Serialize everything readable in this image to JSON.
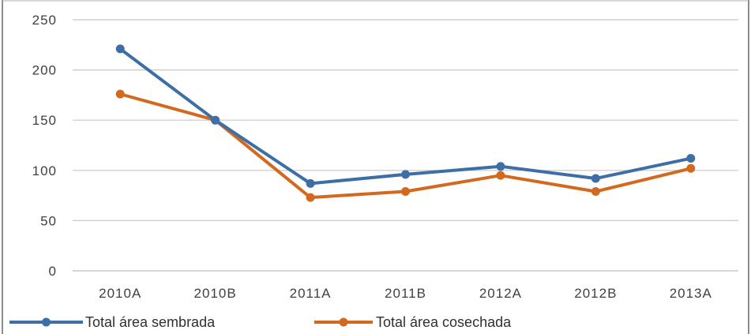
{
  "chart_data": {
    "type": "line",
    "categories": [
      "2010A",
      "2010B",
      "2011A",
      "2011B",
      "2012A",
      "2012B",
      "2013A"
    ],
    "series": [
      {
        "name": "Total área sembrada",
        "color": "#3d6fa6",
        "values": [
          221,
          150,
          87,
          96,
          104,
          92,
          112
        ]
      },
      {
        "name": "Total área cosechada",
        "color": "#d2691e",
        "values": [
          176,
          150,
          73,
          79,
          95,
          79,
          102
        ]
      }
    ],
    "ylim": [
      0,
      250
    ],
    "yticks": [
      0,
      50,
      100,
      150,
      200,
      250
    ],
    "grid": true,
    "legend": "bottom",
    "title": "",
    "xlabel": "",
    "ylabel": ""
  }
}
